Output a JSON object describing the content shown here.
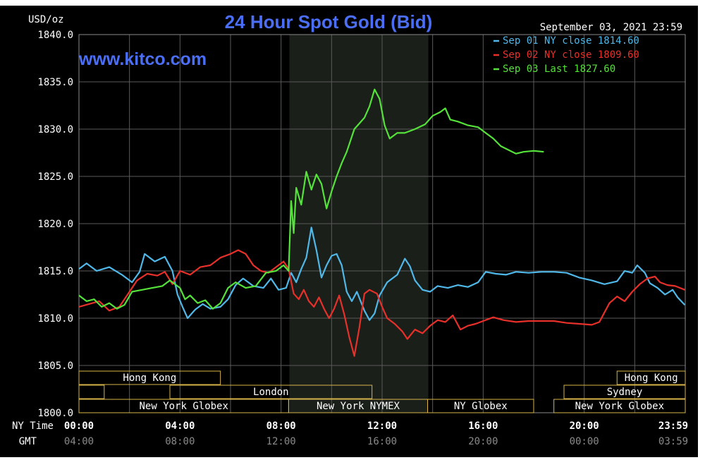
{
  "chart_data": {
    "type": "line",
    "title": "24 Hour Spot Gold (Bid)",
    "watermark": "www.kitco.com",
    "unit_label": "USD/oz",
    "timestamp": "September 03, 2021 23:59",
    "ylim": [
      1800,
      1840
    ],
    "y_ticks": [
      "1840.0",
      "1835.0",
      "1830.0",
      "1825.0",
      "1820.0",
      "1815.0",
      "1810.0",
      "1805.0",
      "1800.0"
    ],
    "x_row_labels": {
      "ny": "NY Time",
      "gmt": "GMT"
    },
    "x_ticks": [
      {
        "hour": 0,
        "ny": "00:00",
        "gmt": "04:00"
      },
      {
        "hour": 4,
        "ny": "04:00",
        "gmt": "08:00"
      },
      {
        "hour": 8,
        "ny": "08:00",
        "gmt": "12:00"
      },
      {
        "hour": 12,
        "ny": "12:00",
        "gmt": "16:00"
      },
      {
        "hour": 16,
        "ny": "16:00",
        "gmt": "20:00"
      },
      {
        "hour": 20,
        "ny": "20:00",
        "gmt": "00:00"
      },
      {
        "hour": 23.983,
        "ny": "23:59",
        "gmt": "03:59"
      }
    ],
    "shaded_hours": [
      8.33,
      13.83
    ],
    "sessions": [
      {
        "row": 0,
        "start": 0,
        "end": 5.6,
        "label": "Hong Kong"
      },
      {
        "row": 0,
        "start": 21.3,
        "end": 24,
        "label": "Hong Kong"
      },
      {
        "row": 1,
        "start": 0,
        "end": 1.0,
        "label": ""
      },
      {
        "row": 1,
        "start": 3.6,
        "end": 11.6,
        "label": "London"
      },
      {
        "row": 1,
        "start": 19.2,
        "end": 24,
        "label": "Sydney"
      },
      {
        "row": 2,
        "start": 0,
        "end": 8.3,
        "label": "New York Globex"
      },
      {
        "row": 2,
        "start": 8.3,
        "end": 13.8,
        "label": "New York NYMEX"
      },
      {
        "row": 2,
        "start": 13.8,
        "end": 18.0,
        "label": "NY Globex"
      },
      {
        "row": 2,
        "start": 18.8,
        "end": 24,
        "label": "New York Globex"
      }
    ],
    "legend": [
      {
        "label": "Sep 01 NY close 1814.60",
        "color": "#4fb8e8"
      },
      {
        "label": "Sep 02 NY close 1809.60",
        "color": "#e8302a"
      },
      {
        "label": "Sep 03 Last 1827.60",
        "color": "#55e23a"
      }
    ],
    "series": [
      {
        "name": "Sep 01 NY close 1814.60",
        "color": "#4fb8e8",
        "points": [
          [
            0,
            1815.2
          ],
          [
            0.3,
            1815.8
          ],
          [
            0.7,
            1815.0
          ],
          [
            1.2,
            1815.4
          ],
          [
            1.7,
            1814.6
          ],
          [
            2.1,
            1813.8
          ],
          [
            2.4,
            1814.9
          ],
          [
            2.6,
            1816.8
          ],
          [
            3.0,
            1816.0
          ],
          [
            3.4,
            1816.5
          ],
          [
            3.7,
            1815.0
          ],
          [
            3.9,
            1812.5
          ],
          [
            4.1,
            1811.2
          ],
          [
            4.3,
            1810.0
          ],
          [
            4.6,
            1810.9
          ],
          [
            4.9,
            1811.5
          ],
          [
            5.2,
            1811.0
          ],
          [
            5.6,
            1811.2
          ],
          [
            5.9,
            1812.0
          ],
          [
            6.2,
            1813.5
          ],
          [
            6.5,
            1814.2
          ],
          [
            6.9,
            1813.4
          ],
          [
            7.3,
            1813.2
          ],
          [
            7.6,
            1814.2
          ],
          [
            7.9,
            1813.0
          ],
          [
            8.2,
            1813.2
          ],
          [
            8.4,
            1814.8
          ],
          [
            8.6,
            1813.8
          ],
          [
            8.8,
            1815.2
          ],
          [
            9.0,
            1816.4
          ],
          [
            9.2,
            1819.6
          ],
          [
            9.4,
            1817.2
          ],
          [
            9.6,
            1814.3
          ],
          [
            9.8,
            1815.6
          ],
          [
            10.0,
            1816.6
          ],
          [
            10.2,
            1816.8
          ],
          [
            10.4,
            1815.6
          ],
          [
            10.6,
            1812.8
          ],
          [
            10.8,
            1811.8
          ],
          [
            11.0,
            1812.8
          ],
          [
            11.3,
            1810.8
          ],
          [
            11.5,
            1809.8
          ],
          [
            11.7,
            1810.5
          ],
          [
            11.9,
            1812.4
          ],
          [
            12.2,
            1813.8
          ],
          [
            12.6,
            1814.6
          ],
          [
            12.9,
            1816.3
          ],
          [
            13.1,
            1815.5
          ],
          [
            13.3,
            1814.0
          ],
          [
            13.6,
            1813.0
          ],
          [
            13.9,
            1812.8
          ],
          [
            14.2,
            1813.4
          ],
          [
            14.6,
            1813.2
          ],
          [
            15.0,
            1813.5
          ],
          [
            15.4,
            1813.3
          ],
          [
            15.8,
            1813.8
          ],
          [
            16.1,
            1814.9
          ],
          [
            16.5,
            1814.7
          ],
          [
            16.9,
            1814.6
          ],
          [
            17.3,
            1814.9
          ],
          [
            17.8,
            1814.8
          ],
          [
            18.3,
            1814.9
          ],
          [
            18.8,
            1814.9
          ],
          [
            19.3,
            1814.8
          ],
          [
            19.8,
            1814.3
          ],
          [
            20.3,
            1814.0
          ],
          [
            20.8,
            1813.6
          ],
          [
            21.3,
            1813.9
          ],
          [
            21.6,
            1815.0
          ],
          [
            21.9,
            1814.8
          ],
          [
            22.1,
            1815.6
          ],
          [
            22.4,
            1814.8
          ],
          [
            22.6,
            1813.7
          ],
          [
            22.9,
            1813.2
          ],
          [
            23.2,
            1812.5
          ],
          [
            23.5,
            1813.0
          ],
          [
            23.7,
            1812.2
          ],
          [
            23.983,
            1811.4
          ]
        ]
      },
      {
        "name": "Sep 02 NY close 1809.60",
        "color": "#e8302a",
        "points": [
          [
            0,
            1811.2
          ],
          [
            0.4,
            1811.5
          ],
          [
            0.8,
            1811.8
          ],
          [
            1.2,
            1810.8
          ],
          [
            1.6,
            1811.2
          ],
          [
            2.0,
            1812.8
          ],
          [
            2.3,
            1814.0
          ],
          [
            2.7,
            1814.7
          ],
          [
            3.1,
            1814.5
          ],
          [
            3.4,
            1814.9
          ],
          [
            3.7,
            1813.6
          ],
          [
            4.0,
            1815.0
          ],
          [
            4.4,
            1814.6
          ],
          [
            4.8,
            1815.4
          ],
          [
            5.2,
            1815.6
          ],
          [
            5.6,
            1816.4
          ],
          [
            6.0,
            1816.8
          ],
          [
            6.3,
            1817.2
          ],
          [
            6.6,
            1816.8
          ],
          [
            6.9,
            1815.6
          ],
          [
            7.2,
            1815.0
          ],
          [
            7.5,
            1814.8
          ],
          [
            7.8,
            1815.4
          ],
          [
            8.1,
            1816.0
          ],
          [
            8.3,
            1815.2
          ],
          [
            8.5,
            1812.6
          ],
          [
            8.7,
            1812.0
          ],
          [
            8.9,
            1813.0
          ],
          [
            9.1,
            1811.8
          ],
          [
            9.3,
            1811.2
          ],
          [
            9.5,
            1812.2
          ],
          [
            9.7,
            1811.0
          ],
          [
            9.9,
            1810.0
          ],
          [
            10.1,
            1811.0
          ],
          [
            10.3,
            1812.4
          ],
          [
            10.5,
            1810.4
          ],
          [
            10.7,
            1808.0
          ],
          [
            10.9,
            1806.0
          ],
          [
            11.1,
            1809.0
          ],
          [
            11.3,
            1812.6
          ],
          [
            11.5,
            1813.0
          ],
          [
            11.8,
            1812.6
          ],
          [
            12.0,
            1811.2
          ],
          [
            12.2,
            1810.0
          ],
          [
            12.5,
            1809.4
          ],
          [
            12.8,
            1808.6
          ],
          [
            13.0,
            1807.8
          ],
          [
            13.3,
            1808.8
          ],
          [
            13.6,
            1808.4
          ],
          [
            13.9,
            1809.2
          ],
          [
            14.2,
            1809.8
          ],
          [
            14.5,
            1809.6
          ],
          [
            14.8,
            1810.3
          ],
          [
            15.1,
            1808.8
          ],
          [
            15.4,
            1809.2
          ],
          [
            15.7,
            1809.4
          ],
          [
            16.0,
            1809.7
          ],
          [
            16.4,
            1810.1
          ],
          [
            16.8,
            1809.8
          ],
          [
            17.3,
            1809.6
          ],
          [
            17.8,
            1809.7
          ],
          [
            18.3,
            1809.7
          ],
          [
            18.8,
            1809.7
          ],
          [
            19.3,
            1809.5
          ],
          [
            19.8,
            1809.4
          ],
          [
            20.3,
            1809.3
          ],
          [
            20.6,
            1809.6
          ],
          [
            20.8,
            1810.6
          ],
          [
            21.0,
            1811.6
          ],
          [
            21.3,
            1812.3
          ],
          [
            21.6,
            1811.8
          ],
          [
            21.9,
            1812.8
          ],
          [
            22.2,
            1813.6
          ],
          [
            22.5,
            1814.2
          ],
          [
            22.8,
            1814.4
          ],
          [
            23.0,
            1813.8
          ],
          [
            23.3,
            1813.5
          ],
          [
            23.6,
            1813.4
          ],
          [
            23.983,
            1813.0
          ]
        ]
      },
      {
        "name": "Sep 03 Last 1827.60",
        "color": "#55e23a",
        "points": [
          [
            0,
            1812.4
          ],
          [
            0.3,
            1811.8
          ],
          [
            0.6,
            1812.0
          ],
          [
            0.9,
            1811.2
          ],
          [
            1.2,
            1811.6
          ],
          [
            1.5,
            1811.0
          ],
          [
            1.8,
            1811.4
          ],
          [
            2.1,
            1812.8
          ],
          [
            2.5,
            1813.0
          ],
          [
            2.9,
            1813.2
          ],
          [
            3.3,
            1813.4
          ],
          [
            3.6,
            1814.0
          ],
          [
            4.0,
            1813.2
          ],
          [
            4.2,
            1812.0
          ],
          [
            4.4,
            1812.4
          ],
          [
            4.7,
            1811.6
          ],
          [
            5.0,
            1811.9
          ],
          [
            5.3,
            1811.0
          ],
          [
            5.6,
            1811.6
          ],
          [
            5.9,
            1813.2
          ],
          [
            6.2,
            1813.8
          ],
          [
            6.6,
            1813.2
          ],
          [
            7.0,
            1813.4
          ],
          [
            7.4,
            1814.8
          ],
          [
            7.8,
            1815.0
          ],
          [
            8.1,
            1815.6
          ],
          [
            8.3,
            1815.0
          ],
          [
            8.4,
            1822.4
          ],
          [
            8.5,
            1819.0
          ],
          [
            8.6,
            1823.8
          ],
          [
            8.8,
            1822.0
          ],
          [
            9.0,
            1825.5
          ],
          [
            9.2,
            1823.6
          ],
          [
            9.4,
            1825.2
          ],
          [
            9.6,
            1824.2
          ],
          [
            9.8,
            1821.6
          ],
          [
            10.0,
            1823.4
          ],
          [
            10.2,
            1825.0
          ],
          [
            10.4,
            1826.4
          ],
          [
            10.6,
            1827.6
          ],
          [
            10.9,
            1830.0
          ],
          [
            11.1,
            1830.6
          ],
          [
            11.3,
            1831.2
          ],
          [
            11.5,
            1832.4
          ],
          [
            11.7,
            1834.2
          ],
          [
            11.9,
            1833.2
          ],
          [
            12.1,
            1830.4
          ],
          [
            12.3,
            1829.0
          ],
          [
            12.6,
            1829.6
          ],
          [
            12.9,
            1829.6
          ],
          [
            13.3,
            1830.0
          ],
          [
            13.7,
            1830.5
          ],
          [
            14.0,
            1831.4
          ],
          [
            14.3,
            1831.8
          ],
          [
            14.5,
            1832.2
          ],
          [
            14.7,
            1831.0
          ],
          [
            15.0,
            1830.8
          ],
          [
            15.4,
            1830.4
          ],
          [
            15.8,
            1830.2
          ],
          [
            16.1,
            1829.6
          ],
          [
            16.4,
            1829.0
          ],
          [
            16.7,
            1828.2
          ],
          [
            17.0,
            1827.8
          ],
          [
            17.3,
            1827.4
          ],
          [
            17.6,
            1827.6
          ],
          [
            18.0,
            1827.7
          ],
          [
            18.4,
            1827.6
          ]
        ]
      }
    ]
  }
}
